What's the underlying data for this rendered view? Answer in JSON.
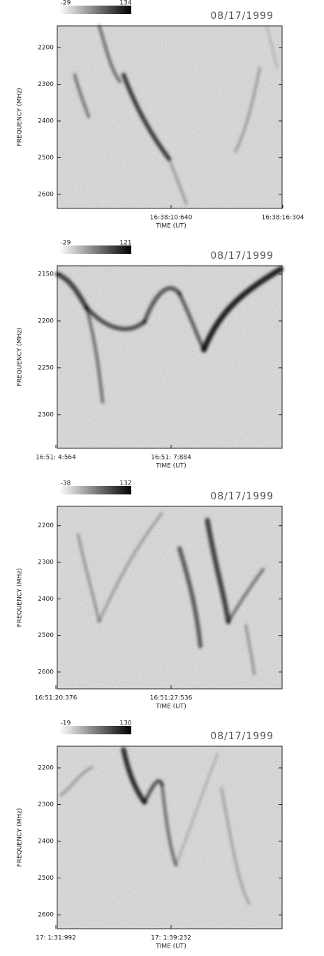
{
  "chart_data": [
    {
      "type": "spectrogram",
      "date": "08/17/1999",
      "colorbar": {
        "min": -29,
        "max": 134
      },
      "y_label": "FREQUENCY (MHz)",
      "x_label": "TIME (UT)",
      "ylim": [
        2141,
        2638
      ],
      "y_inverted": true,
      "yticks": [
        2200,
        2300,
        2400,
        2500,
        2600
      ],
      "x_tick_labels": [
        "16:38:10:640",
        "16:38:16:304"
      ]
    },
    {
      "type": "spectrogram",
      "date": "08/17/1999",
      "colorbar": {
        "min": -29,
        "max": 121
      },
      "y_label": "FREQUENCY (MHz)",
      "x_label": "TIME (UT)",
      "ylim": [
        2141,
        2336
      ],
      "y_inverted": true,
      "yticks": [
        2150,
        2200,
        2250,
        2300
      ],
      "x_tick_labels": [
        "16:51: 4:564",
        "16:51: 7:884"
      ]
    },
    {
      "type": "spectrogram",
      "date": "08/17/1999",
      "colorbar": {
        "min": -38,
        "max": 132
      },
      "y_label": "FREQUENCY (MHz)",
      "x_label": "TIME (UT)",
      "ylim": [
        2147,
        2646
      ],
      "y_inverted": true,
      "yticks": [
        2200,
        2300,
        2400,
        2500,
        2600
      ],
      "x_tick_labels": [
        "16:51:20:376",
        "16:51:27:536"
      ]
    },
    {
      "type": "spectrogram",
      "date": "08/17/1999",
      "colorbar": {
        "min": -19,
        "max": 130
      },
      "y_label": "FREQUENCY (MHz)",
      "x_label": "TIME (UT)",
      "ylim": [
        2141,
        2638
      ],
      "y_inverted": true,
      "yticks": [
        2200,
        2300,
        2400,
        2500,
        2600
      ],
      "x_tick_labels": [
        "17: 1:31:992",
        "17: 1:39:232"
      ]
    }
  ]
}
